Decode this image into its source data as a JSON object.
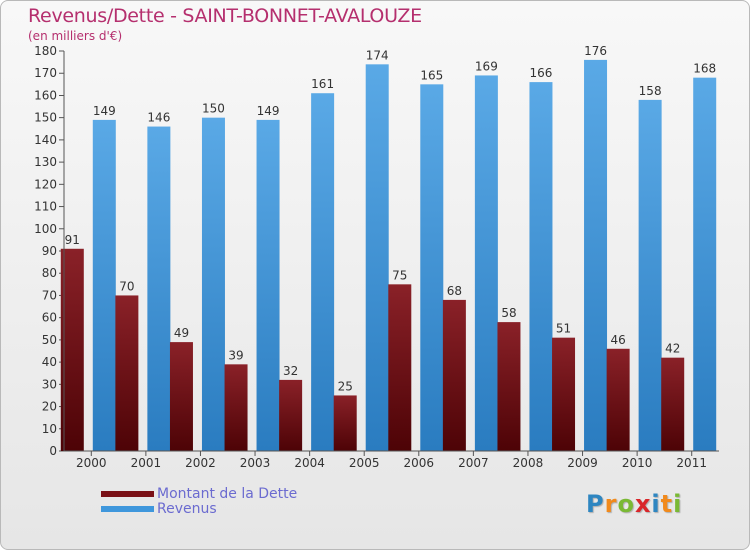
{
  "header": {
    "title": "Revenus/Dette - SAINT-BONNET-AVALOUZE",
    "subtitle": "(en milliers d'€)"
  },
  "legend": [
    {
      "label": "Montant de la Dette",
      "color": "#7a1016"
    },
    {
      "label": "Revenus",
      "color": "#3f97dc"
    }
  ],
  "brand": {
    "letters": [
      {
        "ch": "P",
        "color": "#2e86c1"
      },
      {
        "ch": "r",
        "color": "#f18a1c"
      },
      {
        "ch": "o",
        "color": "#7ab934"
      },
      {
        "ch": "x",
        "color": "#d9262a"
      },
      {
        "ch": "i",
        "color": "#2e86c1"
      },
      {
        "ch": "t",
        "color": "#f18a1c"
      },
      {
        "ch": "i",
        "color": "#7ab934"
      }
    ]
  },
  "chart_data": {
    "type": "bar",
    "title": "Revenus/Dette - SAINT-BONNET-AVALOUZE",
    "subtitle": "(en milliers d'€)",
    "xlabel": "",
    "ylabel": "",
    "categories": [
      "2000",
      "2001",
      "2002",
      "2003",
      "2004",
      "2005",
      "2006",
      "2007",
      "2008",
      "2009",
      "2010",
      "2011"
    ],
    "series": [
      {
        "name": "Montant de la Dette",
        "color": "#7a1016",
        "values": [
          91,
          70,
          49,
          39,
          32,
          25,
          75,
          68,
          58,
          51,
          46,
          42
        ]
      },
      {
        "name": "Revenus",
        "color": "#3f97dc",
        "values": [
          149,
          146,
          150,
          149,
          161,
          174,
          165,
          169,
          166,
          176,
          158,
          168
        ]
      }
    ],
    "ylim": [
      0,
      180
    ],
    "ytick_step": 10,
    "grid": false,
    "legend_position": "bottom-left"
  }
}
